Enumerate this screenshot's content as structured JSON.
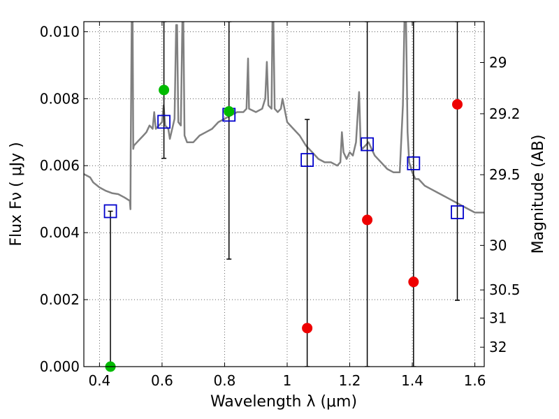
{
  "chart_data": {
    "type": "scatter",
    "xlabel": "Wavelength  λ (μm)",
    "ylabel": "Flux  Fν  ( μJy )",
    "y2label": "Magnitude (AB)",
    "xlim": [
      0.35,
      1.63
    ],
    "ylim": [
      0.0,
      0.0103
    ],
    "grid": true,
    "x_ticks": [
      0.4,
      0.6,
      0.8,
      1.0,
      1.2,
      1.4,
      1.6
    ],
    "x_tick_labels": [
      "0.4",
      "0.6",
      "0.8",
      "1",
      "1.2",
      "1.4",
      "1.6"
    ],
    "y_ticks": [
      0.0,
      0.002,
      0.004,
      0.006,
      0.008,
      0.01
    ],
    "y_tick_labels": [
      "0.000",
      "0.002",
      "0.004",
      "0.006",
      "0.008",
      "0.010"
    ],
    "y2_ticks": [
      {
        "label": "29",
        "flux": 0.00908
      },
      {
        "label": "29.2",
        "flux": 0.00755
      },
      {
        "label": "29.5",
        "flux": 0.00573
      },
      {
        "label": "30",
        "flux": 0.00362
      },
      {
        "label": "30.5",
        "flux": 0.00229
      },
      {
        "label": "31",
        "flux": 0.00145
      },
      {
        "label": "32",
        "flux": 0.00058
      }
    ],
    "colors": {
      "model": "#808080",
      "model_photometry": "#0000cc",
      "detected": "#00bb00",
      "measured": "#ee0000",
      "errorbar": "#000000"
    },
    "observed": {
      "detections": [
        {
          "x": 0.435,
          "y": 0.0
        },
        {
          "x": 0.606,
          "y": 0.00826
        },
        {
          "x": 0.814,
          "y": 0.00762
        }
      ],
      "measurements": [
        {
          "x": 1.064,
          "y": 0.00115
        },
        {
          "x": 1.256,
          "y": 0.00438
        },
        {
          "x": 1.404,
          "y": 0.00253
        },
        {
          "x": 1.544,
          "y": 0.00783
        }
      ],
      "errorbars": [
        {
          "x": 0.435,
          "lo": 0.0,
          "hi": 0.00464
        },
        {
          "x": 0.606,
          "lo": 0.00622,
          "hi": 0.0103
        },
        {
          "x": 0.814,
          "lo": 0.00321,
          "hi": 0.0103
        },
        {
          "x": 1.064,
          "lo": 0.0,
          "hi": 0.00738
        },
        {
          "x": 1.256,
          "lo": 0.0,
          "hi": 0.0103
        },
        {
          "x": 1.404,
          "lo": 0.0,
          "hi": 0.0103
        },
        {
          "x": 1.544,
          "lo": 0.00198,
          "hi": 0.0103
        }
      ]
    },
    "model_photometry": [
      {
        "x": 0.435,
        "y": 0.00464
      },
      {
        "x": 0.606,
        "y": 0.00731
      },
      {
        "x": 0.814,
        "y": 0.00752
      },
      {
        "x": 1.064,
        "y": 0.00617
      },
      {
        "x": 1.256,
        "y": 0.00664
      },
      {
        "x": 1.404,
        "y": 0.00607
      },
      {
        "x": 1.544,
        "y": 0.00461
      }
    ],
    "model_spectrum": [
      [
        0.35,
        0.00575
      ],
      [
        0.37,
        0.00565
      ],
      [
        0.38,
        0.0055
      ],
      [
        0.4,
        0.00535
      ],
      [
        0.42,
        0.00525
      ],
      [
        0.44,
        0.00518
      ],
      [
        0.46,
        0.00515
      ],
      [
        0.48,
        0.00505
      ],
      [
        0.497,
        0.00495
      ],
      [
        0.499,
        0.0047
      ],
      [
        0.5,
        0.0065
      ],
      [
        0.503,
        0.0103
      ],
      [
        0.506,
        0.0103
      ],
      [
        0.508,
        0.0065
      ],
      [
        0.51,
        0.0066
      ],
      [
        0.52,
        0.0067
      ],
      [
        0.53,
        0.0068
      ],
      [
        0.54,
        0.0069
      ],
      [
        0.55,
        0.007
      ],
      [
        0.56,
        0.0072
      ],
      [
        0.57,
        0.0071
      ],
      [
        0.575,
        0.0076
      ],
      [
        0.58,
        0.0071
      ],
      [
        0.59,
        0.0072
      ],
      [
        0.6,
        0.0073
      ],
      [
        0.605,
        0.0078
      ],
      [
        0.61,
        0.0072
      ],
      [
        0.62,
        0.0071
      ],
      [
        0.625,
        0.0068
      ],
      [
        0.63,
        0.007
      ],
      [
        0.64,
        0.0074
      ],
      [
        0.645,
        0.0102
      ],
      [
        0.648,
        0.0102
      ],
      [
        0.652,
        0.0073
      ],
      [
        0.66,
        0.0072
      ],
      [
        0.665,
        0.0103
      ],
      [
        0.668,
        0.0103
      ],
      [
        0.672,
        0.0069
      ],
      [
        0.68,
        0.0067
      ],
      [
        0.7,
        0.0067
      ],
      [
        0.72,
        0.0069
      ],
      [
        0.74,
        0.007
      ],
      [
        0.76,
        0.0071
      ],
      [
        0.78,
        0.0073
      ],
      [
        0.8,
        0.0074
      ],
      [
        0.82,
        0.0075
      ],
      [
        0.84,
        0.0076
      ],
      [
        0.86,
        0.0076
      ],
      [
        0.87,
        0.0077
      ],
      [
        0.875,
        0.0092
      ],
      [
        0.878,
        0.0077
      ],
      [
        0.9,
        0.0076
      ],
      [
        0.92,
        0.0077
      ],
      [
        0.93,
        0.008
      ],
      [
        0.935,
        0.0091
      ],
      [
        0.94,
        0.0078
      ],
      [
        0.95,
        0.0077
      ],
      [
        0.953,
        0.0103
      ],
      [
        0.956,
        0.0103
      ],
      [
        0.96,
        0.0077
      ],
      [
        0.97,
        0.0076
      ],
      [
        0.98,
        0.0077
      ],
      [
        0.985,
        0.008
      ],
      [
        1.0,
        0.0073
      ],
      [
        1.02,
        0.0071
      ],
      [
        1.04,
        0.0069
      ],
      [
        1.06,
        0.0066
      ],
      [
        1.08,
        0.0064
      ],
      [
        1.1,
        0.0062
      ],
      [
        1.12,
        0.0061
      ],
      [
        1.14,
        0.0061
      ],
      [
        1.16,
        0.006
      ],
      [
        1.17,
        0.0061
      ],
      [
        1.175,
        0.007
      ],
      [
        1.18,
        0.0064
      ],
      [
        1.19,
        0.0062
      ],
      [
        1.2,
        0.0064
      ],
      [
        1.21,
        0.0063
      ],
      [
        1.22,
        0.0067
      ],
      [
        1.23,
        0.0082
      ],
      [
        1.235,
        0.0066
      ],
      [
        1.24,
        0.0065
      ],
      [
        1.25,
        0.0066
      ],
      [
        1.26,
        0.0067
      ],
      [
        1.28,
        0.0063
      ],
      [
        1.3,
        0.0061
      ],
      [
        1.32,
        0.0059
      ],
      [
        1.34,
        0.0058
      ],
      [
        1.36,
        0.0058
      ],
      [
        1.37,
        0.0078
      ],
      [
        1.375,
        0.0103
      ],
      [
        1.38,
        0.0103
      ],
      [
        1.385,
        0.007
      ],
      [
        1.39,
        0.0061
      ],
      [
        1.4,
        0.0058
      ],
      [
        1.41,
        0.0056
      ],
      [
        1.42,
        0.0056
      ],
      [
        1.44,
        0.0054
      ],
      [
        1.46,
        0.0053
      ],
      [
        1.48,
        0.0052
      ],
      [
        1.5,
        0.0051
      ],
      [
        1.52,
        0.005
      ],
      [
        1.54,
        0.0049
      ],
      [
        1.56,
        0.0048
      ],
      [
        1.58,
        0.0047
      ],
      [
        1.6,
        0.0046
      ],
      [
        1.63,
        0.0046
      ]
    ]
  }
}
